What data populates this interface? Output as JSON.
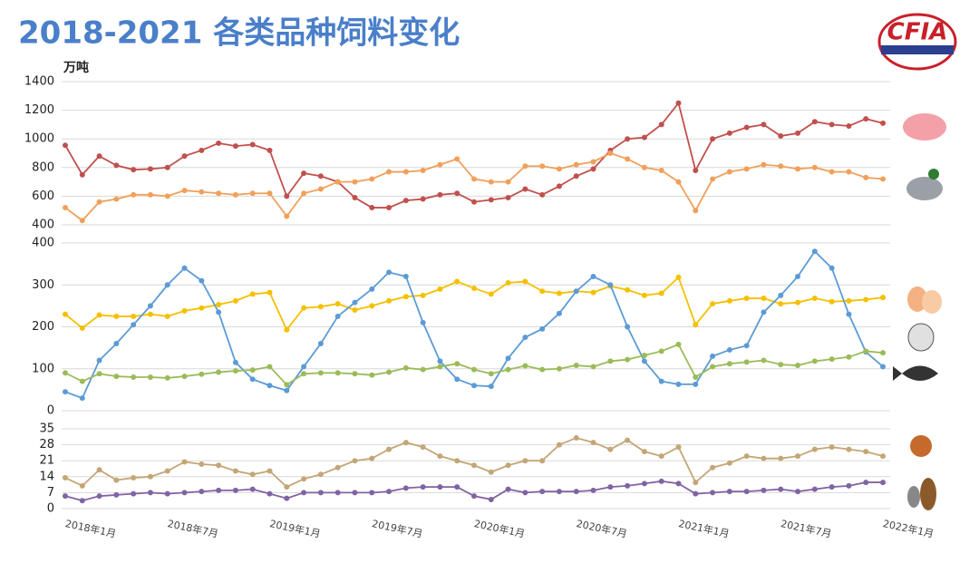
{
  "logo": "CFIA",
  "chart_data": [
    {
      "type": "line",
      "title": "2018-2021 各类品种饲料变化",
      "y_label": "万吨",
      "ylim": [
        400,
        1400
      ],
      "yticks": [
        400,
        600,
        800,
        1000,
        1200,
        1400
      ],
      "grid": true,
      "series": [
        {
          "color": "#c0504d",
          "values": [
            955,
            750,
            880,
            815,
            785,
            790,
            800,
            880,
            920,
            970,
            950,
            960,
            920,
            600,
            760,
            740,
            700,
            590,
            520,
            520,
            570,
            580,
            610,
            620,
            560,
            575,
            590,
            650,
            610,
            670,
            740,
            790,
            920,
            1000,
            1010,
            1100,
            1250,
            780,
            1000,
            1040,
            1080,
            1100,
            1020,
            1040,
            1120,
            1100,
            1090,
            1140,
            1110
          ]
        },
        {
          "color": "#f0a05a",
          "values": [
            520,
            430,
            560,
            580,
            610,
            610,
            600,
            640,
            630,
            620,
            610,
            620,
            620,
            460,
            620,
            650,
            700,
            700,
            720,
            770,
            770,
            780,
            820,
            860,
            720,
            700,
            700,
            810,
            810,
            790,
            820,
            840,
            900,
            860,
            800,
            780,
            700,
            500,
            720,
            770,
            790,
            820,
            810,
            790,
            800,
            770,
            770,
            730,
            720
          ]
        }
      ]
    },
    {
      "type": "line",
      "ylim": [
        0,
        400
      ],
      "yticks": [
        0,
        100,
        200,
        300,
        400
      ],
      "grid": true,
      "series": [
        {
          "color": "#f5c000",
          "values": [
            230,
            197,
            228,
            225,
            225,
            230,
            225,
            238,
            245,
            253,
            262,
            278,
            282,
            193,
            245,
            248,
            255,
            240,
            250,
            262,
            272,
            275,
            290,
            308,
            292,
            278,
            305,
            308,
            285,
            280,
            285,
            282,
            297,
            288,
            275,
            280,
            318,
            205,
            255,
            262,
            268,
            268,
            255,
            258,
            268,
            260,
            262,
            265,
            270
          ]
        },
        {
          "color": "#5b9bd5",
          "values": [
            45,
            30,
            120,
            160,
            205,
            250,
            300,
            340,
            310,
            235,
            115,
            75,
            60,
            48,
            105,
            160,
            225,
            258,
            290,
            330,
            320,
            210,
            118,
            75,
            60,
            58,
            125,
            175,
            195,
            232,
            285,
            320,
            300,
            200,
            118,
            70,
            63,
            63,
            130,
            145,
            155,
            235,
            275,
            320,
            380,
            340,
            230,
            140,
            105
          ]
        },
        {
          "color": "#9bbb59",
          "values": [
            90,
            70,
            88,
            82,
            80,
            80,
            78,
            82,
            87,
            92,
            95,
            97,
            105,
            62,
            88,
            90,
            90,
            88,
            85,
            92,
            102,
            98,
            105,
            112,
            98,
            88,
            98,
            107,
            98,
            100,
            108,
            105,
            118,
            122,
            132,
            142,
            158,
            80,
            105,
            112,
            116,
            120,
            110,
            108,
            118,
            123,
            128,
            142,
            138
          ]
        }
      ]
    },
    {
      "type": "line",
      "ylim": [
        0,
        35
      ],
      "yticks": [
        0,
        7,
        14,
        21,
        28,
        35
      ],
      "grid": true,
      "categories": [
        "2018年1月",
        null,
        null,
        null,
        null,
        null,
        "2018年7月",
        null,
        null,
        null,
        null,
        null,
        "2019年1月",
        null,
        null,
        null,
        null,
        null,
        "2019年7月",
        null,
        null,
        null,
        null,
        null,
        "2020年1月",
        null,
        null,
        null,
        null,
        null,
        "2020年7月",
        null,
        null,
        null,
        null,
        null,
        "2021年1月",
        null,
        null,
        null,
        null,
        null,
        "2021年7月",
        null,
        null,
        null,
        null,
        null,
        "2022年1月"
      ],
      "series": [
        {
          "color": "#c4a676",
          "values": [
            13.5,
            10,
            17,
            12.5,
            13.5,
            14,
            16.5,
            20.5,
            19.5,
            19,
            16.5,
            15,
            16.5,
            9.5,
            13,
            15,
            18,
            21,
            22,
            26,
            29,
            27,
            23,
            21,
            19,
            16,
            19,
            21,
            21,
            28,
            31,
            29,
            26,
            30,
            25,
            23,
            27,
            11.5,
            18,
            20,
            23,
            22,
            22,
            23,
            26,
            27,
            26,
            25,
            23
          ]
        },
        {
          "color": "#8064a2",
          "values": [
            5.5,
            3.5,
            5.5,
            6,
            6.5,
            7,
            6.5,
            7,
            7.5,
            8,
            8,
            8.5,
            6.5,
            4.5,
            7,
            7,
            7,
            7,
            7,
            7.5,
            9,
            9.5,
            9.5,
            9.5,
            5.5,
            4,
            8.5,
            7,
            7.5,
            7.5,
            7.5,
            8,
            9.5,
            10,
            11,
            12,
            11,
            6.5,
            7,
            7.5,
            7.5,
            8,
            8.5,
            7.5,
            8.5,
            9.5,
            10,
            11.5,
            11.5
          ]
        }
      ]
    }
  ]
}
